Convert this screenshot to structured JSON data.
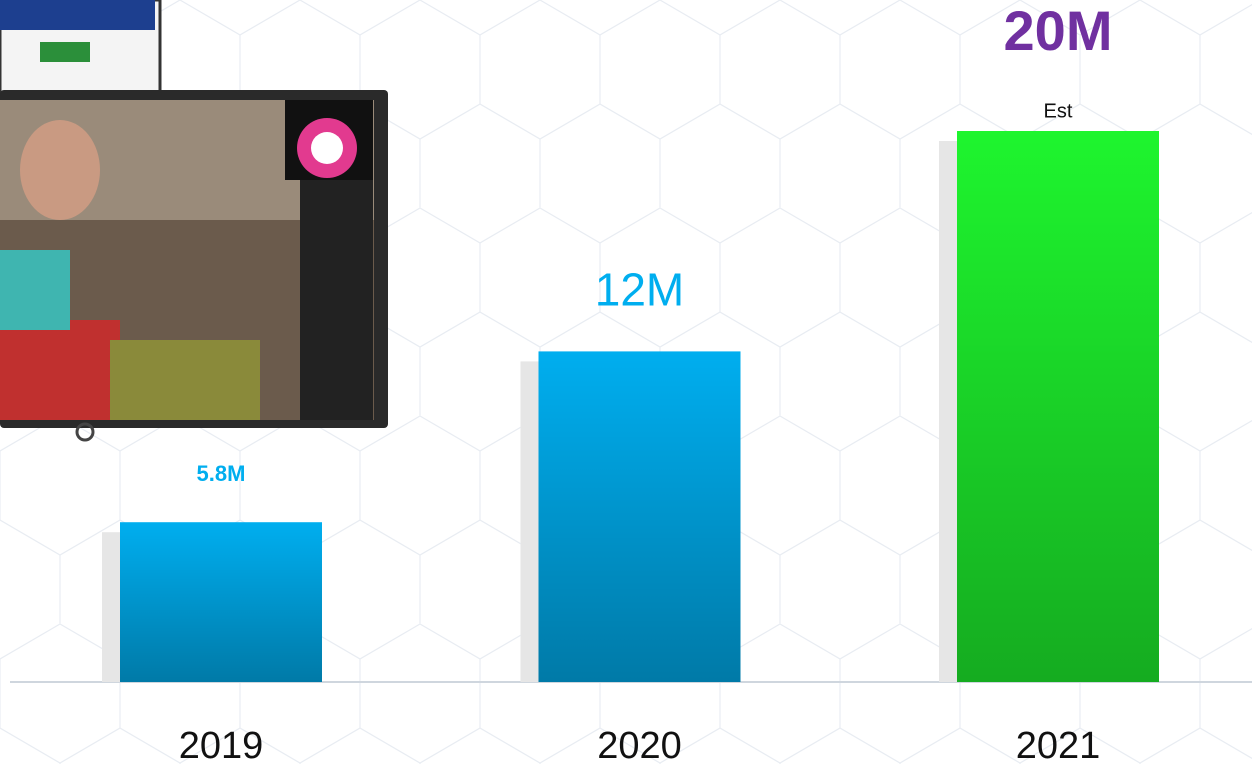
{
  "chart_data": {
    "type": "bar",
    "categories": [
      "2019",
      "2020",
      "2021"
    ],
    "values": [
      5.8,
      12,
      20
    ],
    "value_labels": [
      "5.8M",
      "12M",
      "20M"
    ],
    "colors": [
      "#00aeef",
      "#00aeef",
      "#1ef52e"
    ],
    "ylim": [
      0,
      20
    ],
    "annotation": "Est"
  }
}
